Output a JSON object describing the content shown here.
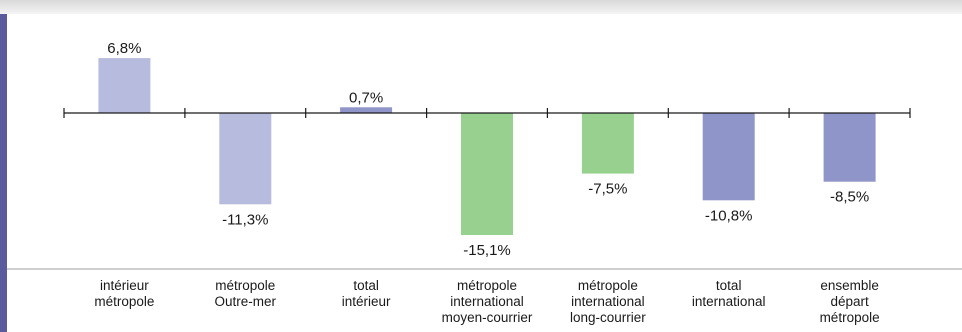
{
  "chart_data": {
    "type": "bar",
    "categories": [
      [
        "intérieur",
        "métropole"
      ],
      [
        "métropole",
        "Outre-mer"
      ],
      [
        "total",
        "intérieur"
      ],
      [
        "métropole",
        "international",
        "moyen-courrier"
      ],
      [
        "métropole",
        "international",
        "long-courrier"
      ],
      [
        "total",
        "international"
      ],
      [
        "ensemble",
        "départ",
        "métropole"
      ]
    ],
    "values": [
      6.8,
      -11.3,
      0.7,
      -15.1,
      -7.5,
      -10.8,
      -8.5
    ],
    "labels": [
      "6,8%",
      "-11,3%",
      "0,7%",
      "-15,1%",
      "-7,5%",
      "-10,8%",
      "-8,5%"
    ],
    "colors": [
      "#b7bbdd",
      "#b7bbdd",
      "#8f94c9",
      "#98d18f",
      "#98d18f",
      "#8f94c9",
      "#8f94c9"
    ],
    "ylim": [
      -15.1,
      6.8
    ],
    "grid": false
  }
}
